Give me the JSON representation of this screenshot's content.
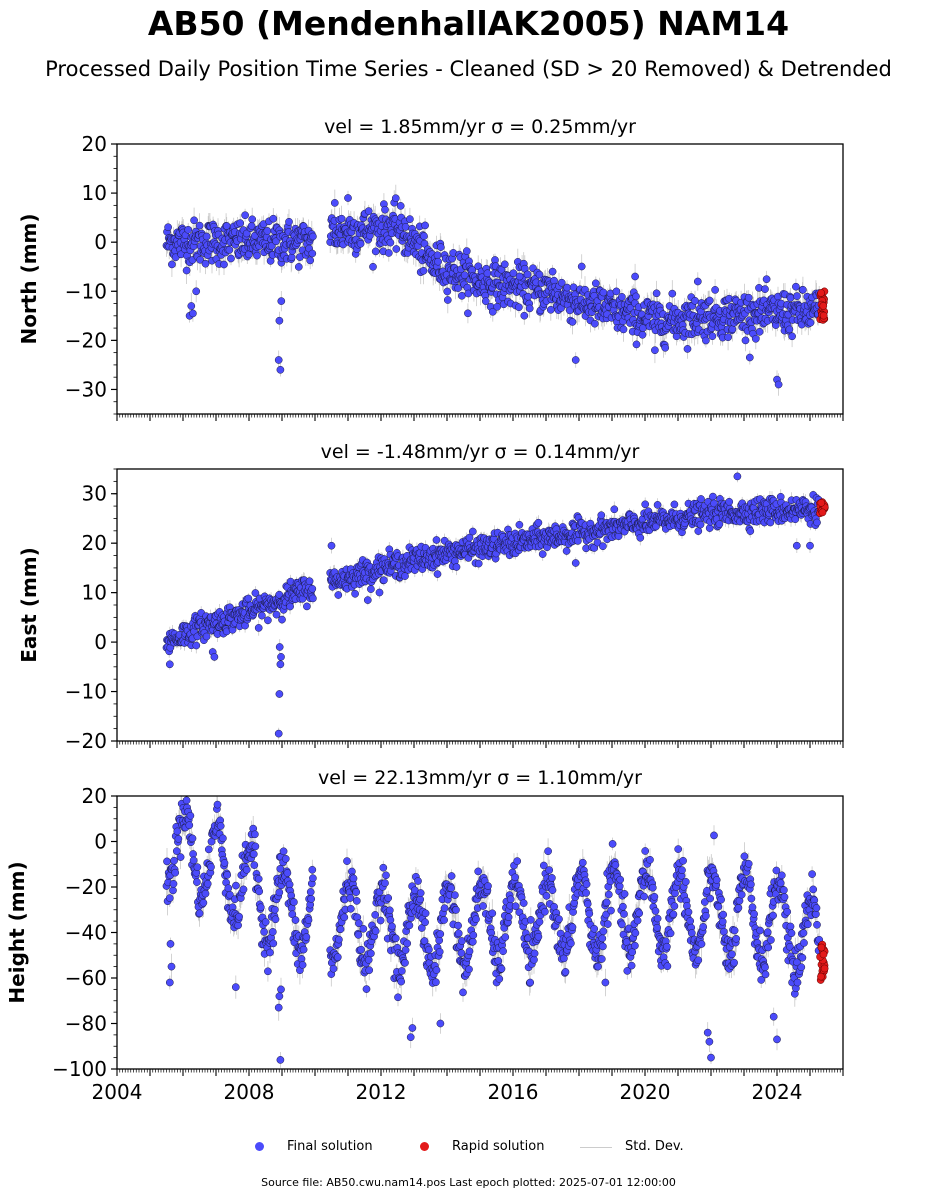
{
  "title": "AB50 (MendenhallAK2005) NAM14",
  "subtitle": "Processed Daily Position Time Series - Cleaned (SD > 20 Removed) & Detrended",
  "footer": {
    "source": "Source file: AB50.cwu.nam14.pos  Last epoch plotted: 2025-07-01 12:00:00"
  },
  "legend": [
    {
      "label": "Final solution",
      "color": "#4b4bfb"
    },
    {
      "label": "Rapid solution",
      "color": "#e31a1a"
    },
    {
      "label": "Std. Dev.",
      "color": "#cccccc"
    }
  ],
  "colors": {
    "final": "#4b4bfb",
    "rapid": "#e31a1a",
    "stddev": "#9a9a9a"
  },
  "chart_data": [
    {
      "type": "scatter",
      "panel_title": "vel = 1.85mm/yr   σ = 0.25mm/yr",
      "ylabel": "North (mm)",
      "xlim": [
        2004,
        2026
      ],
      "ylim": [
        -35,
        20
      ],
      "yticks": [
        20,
        10,
        0,
        -10,
        -20,
        -30
      ],
      "trend": [
        [
          2005.5,
          0
        ],
        [
          2009.9,
          0
        ],
        [
          2010.4,
          2
        ],
        [
          2012.5,
          3
        ],
        [
          2013.0,
          0
        ],
        [
          2013.5,
          -4
        ],
        [
          2015.0,
          -8
        ],
        [
          2017.0,
          -10
        ],
        [
          2019.0,
          -14
        ],
        [
          2020.5,
          -16
        ],
        [
          2022.0,
          -15
        ],
        [
          2025.3,
          -14
        ]
      ],
      "noise": 2.2,
      "outliers": [
        [
          2006.2,
          -15
        ],
        [
          2006.25,
          -13
        ],
        [
          2006.3,
          -14.5
        ],
        [
          2006.4,
          -10
        ],
        [
          2008.9,
          -24
        ],
        [
          2008.95,
          -26
        ],
        [
          2008.92,
          -16
        ],
        [
          2008.98,
          -12
        ],
        [
          2010.6,
          8
        ],
        [
          2011.0,
          9
        ],
        [
          2016.2,
          -7
        ],
        [
          2017.2,
          -6
        ],
        [
          2017.9,
          -24
        ],
        [
          2019.7,
          -7
        ],
        [
          2020.3,
          -22
        ],
        [
          2024.0,
          -28
        ],
        [
          2024.05,
          -29
        ],
        [
          2021.6,
          -8
        ]
      ],
      "gaps": [
        [
          2009.95,
          2010.45
        ]
      ],
      "rapid": {
        "x0": 2025.3,
        "x1": 2025.45,
        "y0": -16,
        "y1": -10
      }
    },
    {
      "type": "scatter",
      "panel_title": "vel = -1.48mm/yr   σ = 0.14mm/yr",
      "ylabel": "East (mm)",
      "xlim": [
        2004,
        2026
      ],
      "ylim": [
        -20,
        35
      ],
      "yticks": [
        30,
        20,
        10,
        0,
        -10,
        -20
      ],
      "trend": [
        [
          2005.5,
          0
        ],
        [
          2006.5,
          3
        ],
        [
          2008.0,
          6
        ],
        [
          2009.9,
          11
        ],
        [
          2010.5,
          12
        ],
        [
          2012.0,
          15
        ],
        [
          2014.0,
          18
        ],
        [
          2016.0,
          20
        ],
        [
          2018.0,
          22
        ],
        [
          2020.0,
          24
        ],
        [
          2022.0,
          26
        ],
        [
          2025.3,
          27
        ]
      ],
      "noise": 1.3,
      "outliers": [
        [
          2005.6,
          -4.5
        ],
        [
          2006.9,
          -2
        ],
        [
          2006.95,
          -3
        ],
        [
          2008.9,
          -18.5
        ],
        [
          2008.92,
          -10.5
        ],
        [
          2008.95,
          -4.5
        ],
        [
          2008.97,
          -3
        ],
        [
          2008.93,
          -1
        ],
        [
          2010.5,
          19.5
        ],
        [
          2011.6,
          8.5
        ],
        [
          2017.9,
          16
        ],
        [
          2022.8,
          33.5
        ],
        [
          2024.6,
          19.5
        ],
        [
          2025.0,
          19.5
        ]
      ],
      "gaps": [
        [
          2009.95,
          2010.45
        ]
      ],
      "rapid": {
        "x0": 2025.3,
        "x1": 2025.45,
        "y0": 26,
        "y1": 29
      }
    },
    {
      "type": "scatter",
      "panel_title": "vel = 22.13mm/yr   σ = 1.10mm/yr",
      "ylabel": "Height (mm)",
      "xlim": [
        2004,
        2026
      ],
      "ylim": [
        -100,
        20
      ],
      "yticks": [
        20,
        0,
        -20,
        -40,
        -60,
        -80,
        -100
      ],
      "xticks": [
        2004,
        2008,
        2012,
        2016,
        2020,
        2024
      ],
      "trend": [
        [
          2005.5,
          0
        ],
        [
          2007.0,
          -10
        ],
        [
          2009.0,
          -30
        ],
        [
          2011.0,
          -35
        ],
        [
          2013.0,
          -40
        ],
        [
          2016.0,
          -35
        ],
        [
          2020.0,
          -30
        ],
        [
          2024.0,
          -35
        ],
        [
          2025.3,
          -45
        ]
      ],
      "seasonal_amp": 18,
      "noise": 5,
      "outliers": [
        [
          2005.6,
          -62
        ],
        [
          2005.65,
          -55
        ],
        [
          2005.62,
          -45
        ],
        [
          2008.95,
          -96
        ],
        [
          2008.9,
          -73
        ],
        [
          2008.92,
          -68
        ],
        [
          2008.97,
          -65
        ],
        [
          2007.6,
          -64
        ],
        [
          2012.9,
          -86
        ],
        [
          2012.95,
          -82
        ],
        [
          2021.9,
          -84
        ],
        [
          2021.95,
          -88
        ],
        [
          2022.0,
          -95
        ],
        [
          2024.0,
          -87
        ],
        [
          2023.9,
          -77
        ],
        [
          2018.8,
          -62
        ],
        [
          2013.8,
          -80
        ]
      ],
      "gaps": [
        [
          2009.95,
          2010.45
        ]
      ],
      "rapid": {
        "x0": 2025.3,
        "x1": 2025.45,
        "y0": -61,
        "y1": -45
      }
    }
  ]
}
